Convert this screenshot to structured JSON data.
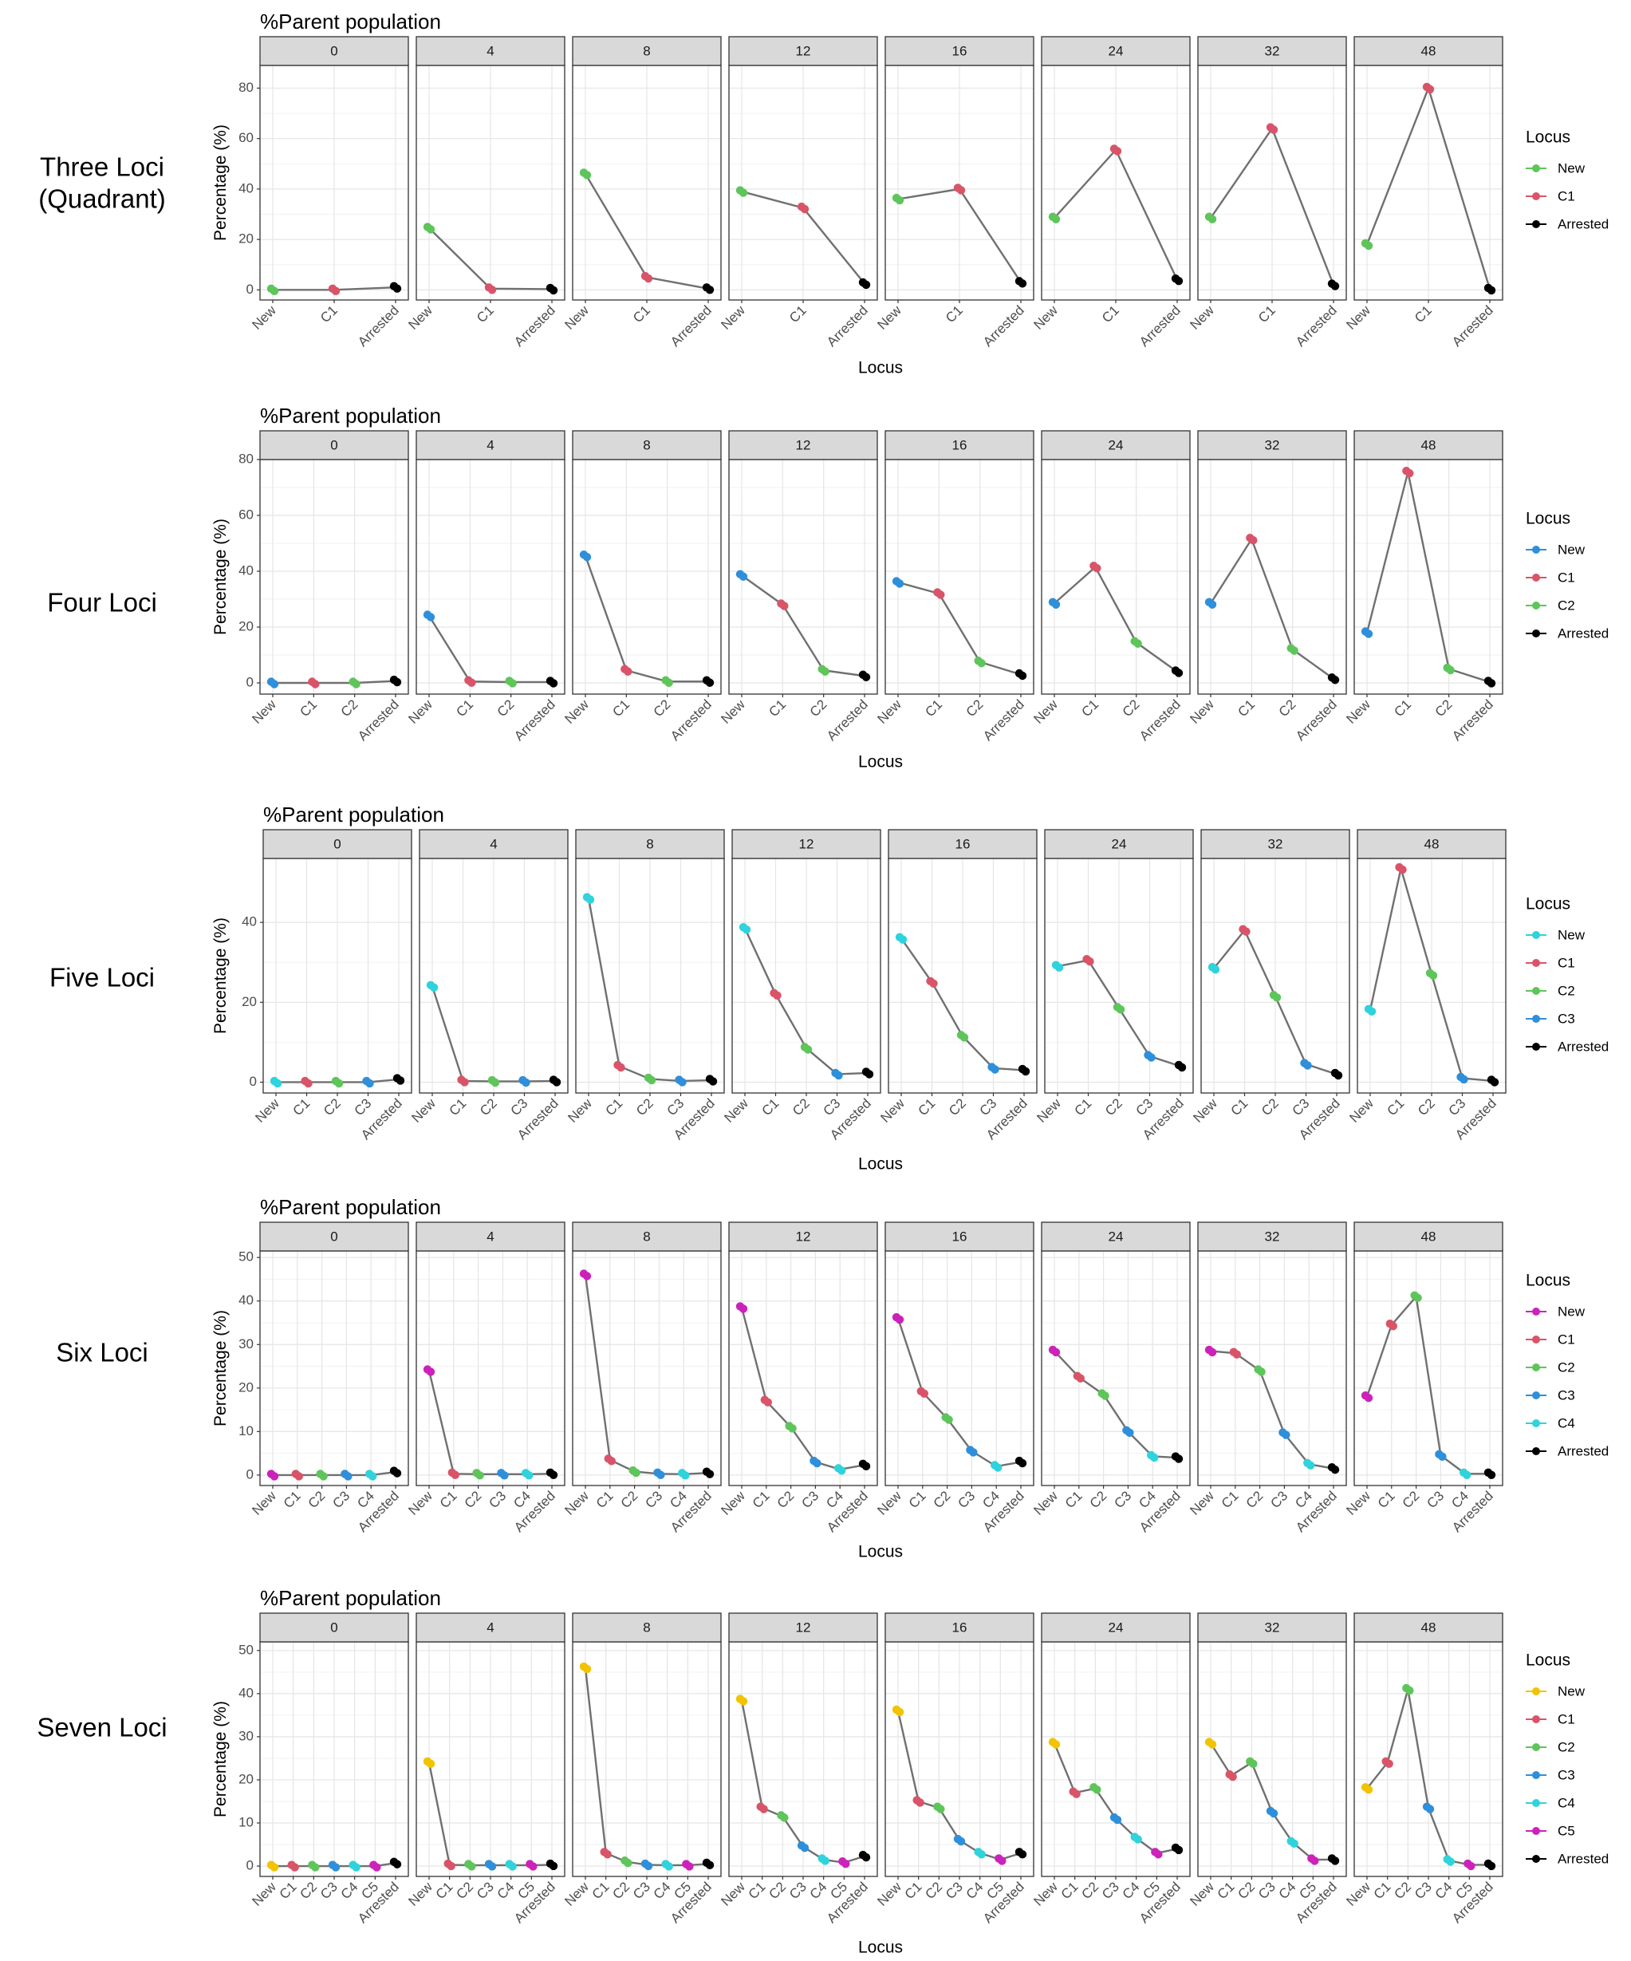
{
  "chart_data": [
    {
      "type": "line",
      "row_label": [
        "Three Loci",
        "(Quadrant)"
      ],
      "title": "%Parent population",
      "facets": [
        "0",
        "4",
        "8",
        "12",
        "16",
        "24",
        "32",
        "48"
      ],
      "categories": [
        "New",
        "C1",
        "Arrested"
      ],
      "xlabel": "Locus",
      "ylabel": "Percentage (%)",
      "ylim": [
        -4,
        89
      ],
      "yticks": [
        0,
        20,
        40,
        60,
        80
      ],
      "legend_title": "Locus",
      "legend": [
        {
          "name": "New",
          "color": "#5ec55a"
        },
        {
          "name": "C1",
          "color": "#d95468"
        },
        {
          "name": "Arrested",
          "color": "#000000"
        }
      ],
      "values": [
        [
          0,
          0,
          1
        ],
        [
          24.5,
          0.5,
          0.3
        ],
        [
          46,
          5,
          0.5
        ],
        [
          39,
          32.5,
          2.5
        ],
        [
          36,
          40,
          3
        ],
        [
          28.5,
          55.5,
          4
        ],
        [
          28.5,
          64,
          2
        ],
        [
          18,
          80,
          0.3
        ]
      ]
    },
    {
      "type": "line",
      "row_label": [
        "Four Loci"
      ],
      "title": "%Parent population",
      "facets": [
        "0",
        "4",
        "8",
        "12",
        "16",
        "24",
        "32",
        "48"
      ],
      "categories": [
        "New",
        "C1",
        "C2",
        "Arrested"
      ],
      "xlabel": "Locus",
      "ylabel": "Percentage (%)",
      "ylim": [
        -4,
        80
      ],
      "yticks": [
        0,
        20,
        40,
        60,
        80
      ],
      "legend_title": "Locus",
      "legend": [
        {
          "name": "New",
          "color": "#2e8fdb"
        },
        {
          "name": "C1",
          "color": "#d95468"
        },
        {
          "name": "C2",
          "color": "#5ec55a"
        },
        {
          "name": "Arrested",
          "color": "#000000"
        }
      ],
      "values": [
        [
          0,
          0,
          0,
          0.7
        ],
        [
          24,
          0.5,
          0.3,
          0.3
        ],
        [
          45.5,
          4.5,
          0.5,
          0.5
        ],
        [
          38.5,
          28,
          4.5,
          2.5
        ],
        [
          36,
          32,
          7.5,
          3
        ],
        [
          28.5,
          41.5,
          14.5,
          4
        ],
        [
          28.5,
          51.5,
          12,
          1.5
        ],
        [
          18,
          75.5,
          5,
          0.3
        ]
      ]
    },
    {
      "type": "line",
      "row_label": [
        "Five Loci"
      ],
      "title": "%Parent population",
      "facets": [
        "0",
        "4",
        "8",
        "12",
        "16",
        "24",
        "32",
        "48"
      ],
      "categories": [
        "New",
        "C1",
        "C2",
        "C3",
        "Arrested"
      ],
      "xlabel": "Locus",
      "ylabel": "Percentage (%)",
      "ylim": [
        -2.7,
        56
      ],
      "yticks": [
        0,
        20,
        40
      ],
      "legend_title": "Locus",
      "legend": [
        {
          "name": "New",
          "color": "#2fd3dc"
        },
        {
          "name": "C1",
          "color": "#d95468"
        },
        {
          "name": "C2",
          "color": "#5ec55a"
        },
        {
          "name": "C3",
          "color": "#2e8fdb"
        },
        {
          "name": "Arrested",
          "color": "#000000"
        }
      ],
      "values": [
        [
          0,
          0,
          0,
          0,
          0.7
        ],
        [
          24,
          0.3,
          0.2,
          0.2,
          0.3
        ],
        [
          46,
          4,
          0.8,
          0.3,
          0.5
        ],
        [
          38.5,
          22,
          8.5,
          2,
          2.3
        ],
        [
          36,
          25,
          11.5,
          3.5,
          3
        ],
        [
          29,
          30.5,
          18.5,
          6.5,
          4
        ],
        [
          28.5,
          38,
          21.5,
          4.5,
          2
        ],
        [
          18,
          53.5,
          27,
          1,
          0.3
        ]
      ]
    },
    {
      "type": "line",
      "row_label": [
        "Six Loci"
      ],
      "title": "%Parent population",
      "facets": [
        "0",
        "4",
        "8",
        "12",
        "16",
        "24",
        "32",
        "48"
      ],
      "categories": [
        "New",
        "C1",
        "C2",
        "C3",
        "C4",
        "Arrested"
      ],
      "xlabel": "Locus",
      "ylabel": "Percentage (%)",
      "ylim": [
        -2.4,
        51.5
      ],
      "yticks": [
        0,
        10,
        20,
        30,
        40,
        50
      ],
      "legend_title": "Locus",
      "legend": [
        {
          "name": "New",
          "color": "#cc22bb"
        },
        {
          "name": "C1",
          "color": "#d95468"
        },
        {
          "name": "C2",
          "color": "#5ec55a"
        },
        {
          "name": "C3",
          "color": "#2e8fdb"
        },
        {
          "name": "C4",
          "color": "#2fd3dc"
        },
        {
          "name": "Arrested",
          "color": "#000000"
        }
      ],
      "values": [
        [
          0,
          0,
          0,
          0,
          0,
          0.7
        ],
        [
          24,
          0.3,
          0.2,
          0.2,
          0.2,
          0.3
        ],
        [
          46,
          3.5,
          0.8,
          0.3,
          0.2,
          0.5
        ],
        [
          38.5,
          17,
          11,
          3,
          1.3,
          2.3
        ],
        [
          36,
          19,
          13,
          5.5,
          2,
          3
        ],
        [
          28.5,
          22.5,
          18.5,
          10,
          4.3,
          4
        ],
        [
          28.5,
          28,
          24,
          9.5,
          2.5,
          1.5
        ],
        [
          18,
          34.5,
          41,
          4.5,
          0.3,
          0.3
        ]
      ]
    },
    {
      "type": "line",
      "row_label": [
        "Seven Loci"
      ],
      "title": "%Parent population",
      "facets": [
        "0",
        "4",
        "8",
        "12",
        "16",
        "24",
        "32",
        "48"
      ],
      "categories": [
        "New",
        "C1",
        "C2",
        "C3",
        "C4",
        "C5",
        "Arrested"
      ],
      "xlabel": "Locus",
      "ylabel": "Percentage (%)",
      "ylim": [
        -2.4,
        52
      ],
      "yticks": [
        0,
        10,
        20,
        30,
        40,
        50
      ],
      "legend_title": "Locus",
      "legend": [
        {
          "name": "New",
          "color": "#f2c300"
        },
        {
          "name": "C1",
          "color": "#d95468"
        },
        {
          "name": "C2",
          "color": "#5ec55a"
        },
        {
          "name": "C3",
          "color": "#2e8fdb"
        },
        {
          "name": "C4",
          "color": "#2fd3dc"
        },
        {
          "name": "C5",
          "color": "#cc22bb"
        },
        {
          "name": "Arrested",
          "color": "#000000"
        }
      ],
      "values": [
        [
          0,
          0,
          0,
          0,
          0,
          0,
          0.7
        ],
        [
          24,
          0.3,
          0.2,
          0.2,
          0.2,
          0.2,
          0.3
        ],
        [
          46,
          3,
          1,
          0.3,
          0.2,
          0.2,
          0.5
        ],
        [
          38.5,
          13.5,
          11.5,
          4.5,
          1.5,
          0.8,
          2.3
        ],
        [
          36,
          15,
          13.5,
          6,
          3,
          1.5,
          3
        ],
        [
          28.5,
          17,
          18,
          11,
          6.5,
          3,
          4
        ],
        [
          28.5,
          21,
          24,
          12.5,
          5.5,
          1.5,
          1.5
        ],
        [
          18,
          24,
          41,
          13.5,
          1.3,
          0.3,
          0.3
        ]
      ]
    }
  ]
}
